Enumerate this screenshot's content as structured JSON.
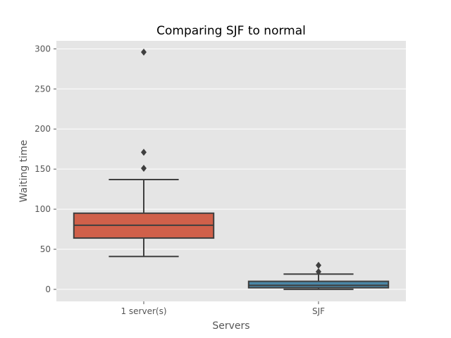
{
  "chart_data": {
    "type": "box",
    "title": "Comparing SJF to normal",
    "xlabel": "Servers",
    "ylabel": "Waiting time",
    "ylim": [
      -15,
      310
    ],
    "yticks": [
      0,
      50,
      100,
      150,
      200,
      250,
      300
    ],
    "grid": true,
    "categories": [
      "1 server(s)",
      "SJF"
    ],
    "boxes": [
      {
        "category": "1 server(s)",
        "whisker_low": 41,
        "q1": 64,
        "median": 80,
        "q3": 95,
        "whisker_high": 137,
        "outliers": [
          151,
          171,
          296
        ],
        "color": "#d0604a"
      },
      {
        "category": "SJF",
        "whisker_low": 0,
        "q1": 2,
        "median": 5,
        "q3": 10,
        "whisker_high": 19,
        "outliers": [
          22,
          30
        ],
        "color": "#4a86a6"
      }
    ],
    "colors": {
      "plot_background": "#e5e5e5",
      "grid": "#ffffff",
      "line": "#3f3f3f"
    }
  }
}
